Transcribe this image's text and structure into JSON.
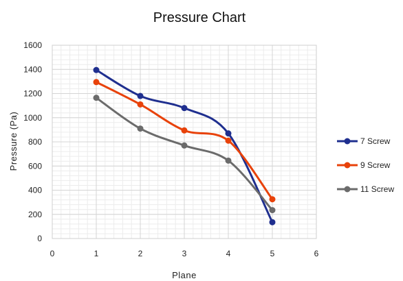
{
  "chart_data": {
    "type": "line",
    "title": "Pressure Chart",
    "xlabel": "Plane",
    "ylabel": "Pressure (Pa)",
    "xlim": [
      0,
      6
    ],
    "ylim": [
      0,
      1600
    ],
    "xticks": [
      0,
      1,
      2,
      3,
      4,
      5,
      6
    ],
    "yticks": [
      0,
      200,
      400,
      600,
      800,
      1000,
      1200,
      1400,
      1600
    ],
    "grid": true,
    "smooth": true,
    "legend_position": "right",
    "x": [
      1,
      2,
      3,
      4,
      5
    ],
    "series": [
      {
        "name": "7 Screw",
        "color": "#1f2f8f",
        "values": [
          1395,
          1180,
          1080,
          870,
          135
        ]
      },
      {
        "name": "9 Screw",
        "color": "#e8420a",
        "values": [
          1295,
          1110,
          895,
          810,
          325
        ]
      },
      {
        "name": "11 Screw",
        "color": "#6b6b6b",
        "values": [
          1165,
          910,
          770,
          645,
          235
        ]
      }
    ]
  }
}
